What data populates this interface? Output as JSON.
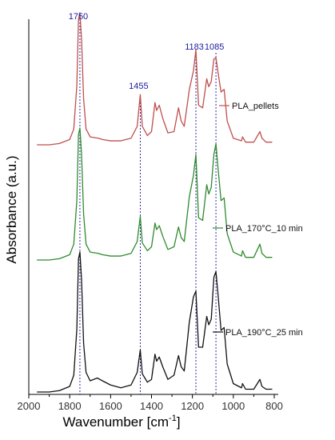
{
  "chart_data": {
    "type": "line",
    "title": "",
    "xlabel": "Wavenumber [cm",
    "xlabel_sup": "-1",
    "xlabel_end": "]",
    "ylabel": "Absorbance (a.u.)",
    "xlim": [
      2000,
      800
    ],
    "x_reversed": true,
    "xticks": [
      2000,
      1800,
      1600,
      1400,
      1200,
      1000,
      800
    ],
    "grid": false,
    "legend": "inline-right",
    "peak_color": "#1a1aa0",
    "peaks": [
      {
        "x": 1750,
        "label": "1750"
      },
      {
        "x": 1455,
        "label": "1455"
      },
      {
        "x": 1183,
        "label": "1183"
      },
      {
        "x": 1085,
        "label": "1085"
      }
    ],
    "series": [
      {
        "name": "PLA_pellets",
        "color": "#c0504d",
        "points": [
          [
            1960,
            0.0
          ],
          [
            1900,
            0.0
          ],
          [
            1850,
            0.01
          ],
          [
            1800,
            0.04
          ],
          [
            1780,
            0.12
          ],
          [
            1765,
            0.45
          ],
          [
            1757,
            0.95
          ],
          [
            1750,
            1.0
          ],
          [
            1742,
            0.8
          ],
          [
            1732,
            0.35
          ],
          [
            1720,
            0.12
          ],
          [
            1700,
            0.06
          ],
          [
            1660,
            0.05
          ],
          [
            1640,
            0.04
          ],
          [
            1600,
            0.03
          ],
          [
            1550,
            0.03
          ],
          [
            1500,
            0.05
          ],
          [
            1470,
            0.14
          ],
          [
            1455,
            0.38
          ],
          [
            1445,
            0.14
          ],
          [
            1420,
            0.07
          ],
          [
            1400,
            0.1
          ],
          [
            1383,
            0.32
          ],
          [
            1375,
            0.26
          ],
          [
            1362,
            0.3
          ],
          [
            1345,
            0.2
          ],
          [
            1320,
            0.09
          ],
          [
            1290,
            0.1
          ],
          [
            1268,
            0.28
          ],
          [
            1255,
            0.18
          ],
          [
            1240,
            0.14
          ],
          [
            1215,
            0.42
          ],
          [
            1195,
            0.56
          ],
          [
            1183,
            0.72
          ],
          [
            1170,
            0.3
          ],
          [
            1150,
            0.28
          ],
          [
            1130,
            0.5
          ],
          [
            1120,
            0.44
          ],
          [
            1108,
            0.48
          ],
          [
            1095,
            0.65
          ],
          [
            1085,
            0.66
          ],
          [
            1075,
            0.55
          ],
          [
            1060,
            0.4
          ],
          [
            1045,
            0.42
          ],
          [
            1030,
            0.18
          ],
          [
            1000,
            0.05
          ],
          [
            960,
            0.03
          ],
          [
            955,
            0.06
          ],
          [
            940,
            0.02
          ],
          [
            900,
            0.02
          ],
          [
            870,
            0.1
          ],
          [
            860,
            0.05
          ],
          [
            840,
            0.02
          ],
          [
            810,
            0.02
          ]
        ]
      },
      {
        "name": "PLA_170°C_10 min",
        "color": "#2e8b2e",
        "points": [
          [
            1960,
            0.0
          ],
          [
            1900,
            0.0
          ],
          [
            1850,
            0.01
          ],
          [
            1800,
            0.04
          ],
          [
            1780,
            0.12
          ],
          [
            1765,
            0.45
          ],
          [
            1757,
            0.95
          ],
          [
            1750,
            1.0
          ],
          [
            1742,
            0.8
          ],
          [
            1732,
            0.35
          ],
          [
            1720,
            0.12
          ],
          [
            1700,
            0.06
          ],
          [
            1660,
            0.05
          ],
          [
            1640,
            0.04
          ],
          [
            1600,
            0.03
          ],
          [
            1550,
            0.03
          ],
          [
            1500,
            0.05
          ],
          [
            1470,
            0.14
          ],
          [
            1455,
            0.33
          ],
          [
            1445,
            0.13
          ],
          [
            1420,
            0.07
          ],
          [
            1400,
            0.1
          ],
          [
            1383,
            0.28
          ],
          [
            1375,
            0.23
          ],
          [
            1362,
            0.26
          ],
          [
            1345,
            0.18
          ],
          [
            1320,
            0.08
          ],
          [
            1290,
            0.1
          ],
          [
            1268,
            0.25
          ],
          [
            1255,
            0.17
          ],
          [
            1240,
            0.14
          ],
          [
            1215,
            0.48
          ],
          [
            1195,
            0.64
          ],
          [
            1183,
            0.8
          ],
          [
            1170,
            0.32
          ],
          [
            1150,
            0.3
          ],
          [
            1130,
            0.57
          ],
          [
            1120,
            0.5
          ],
          [
            1108,
            0.55
          ],
          [
            1095,
            0.8
          ],
          [
            1085,
            0.88
          ],
          [
            1075,
            0.7
          ],
          [
            1060,
            0.45
          ],
          [
            1045,
            0.47
          ],
          [
            1030,
            0.2
          ],
          [
            1000,
            0.06
          ],
          [
            960,
            0.03
          ],
          [
            955,
            0.07
          ],
          [
            940,
            0.02
          ],
          [
            900,
            0.02
          ],
          [
            870,
            0.12
          ],
          [
            860,
            0.05
          ],
          [
            840,
            0.02
          ],
          [
            810,
            0.02
          ]
        ]
      },
      {
        "name": "PLA_190°C_25 min",
        "color": "#111111",
        "points": [
          [
            1960,
            0.0
          ],
          [
            1900,
            0.0
          ],
          [
            1850,
            0.01
          ],
          [
            1800,
            0.04
          ],
          [
            1780,
            0.12
          ],
          [
            1765,
            0.45
          ],
          [
            1757,
            0.95
          ],
          [
            1750,
            1.0
          ],
          [
            1742,
            0.8
          ],
          [
            1732,
            0.35
          ],
          [
            1720,
            0.14
          ],
          [
            1700,
            0.08
          ],
          [
            1665,
            0.1
          ],
          [
            1640,
            0.08
          ],
          [
            1600,
            0.05
          ],
          [
            1550,
            0.03
          ],
          [
            1500,
            0.05
          ],
          [
            1470,
            0.14
          ],
          [
            1455,
            0.3
          ],
          [
            1445,
            0.13
          ],
          [
            1420,
            0.07
          ],
          [
            1400,
            0.09
          ],
          [
            1383,
            0.27
          ],
          [
            1375,
            0.22
          ],
          [
            1362,
            0.25
          ],
          [
            1345,
            0.18
          ],
          [
            1320,
            0.09
          ],
          [
            1290,
            0.12
          ],
          [
            1268,
            0.26
          ],
          [
            1255,
            0.18
          ],
          [
            1240,
            0.15
          ],
          [
            1215,
            0.5
          ],
          [
            1195,
            0.68
          ],
          [
            1183,
            0.72
          ],
          [
            1170,
            0.32
          ],
          [
            1150,
            0.32
          ],
          [
            1130,
            0.54
          ],
          [
            1120,
            0.48
          ],
          [
            1108,
            0.52
          ],
          [
            1095,
            0.82
          ],
          [
            1085,
            0.86
          ],
          [
            1075,
            0.7
          ],
          [
            1060,
            0.44
          ],
          [
            1045,
            0.46
          ],
          [
            1030,
            0.2
          ],
          [
            1000,
            0.06
          ],
          [
            960,
            0.03
          ],
          [
            955,
            0.06
          ],
          [
            940,
            0.02
          ],
          [
            900,
            0.02
          ],
          [
            870,
            0.09
          ],
          [
            860,
            0.04
          ],
          [
            840,
            0.02
          ],
          [
            810,
            0.02
          ]
        ]
      }
    ]
  }
}
